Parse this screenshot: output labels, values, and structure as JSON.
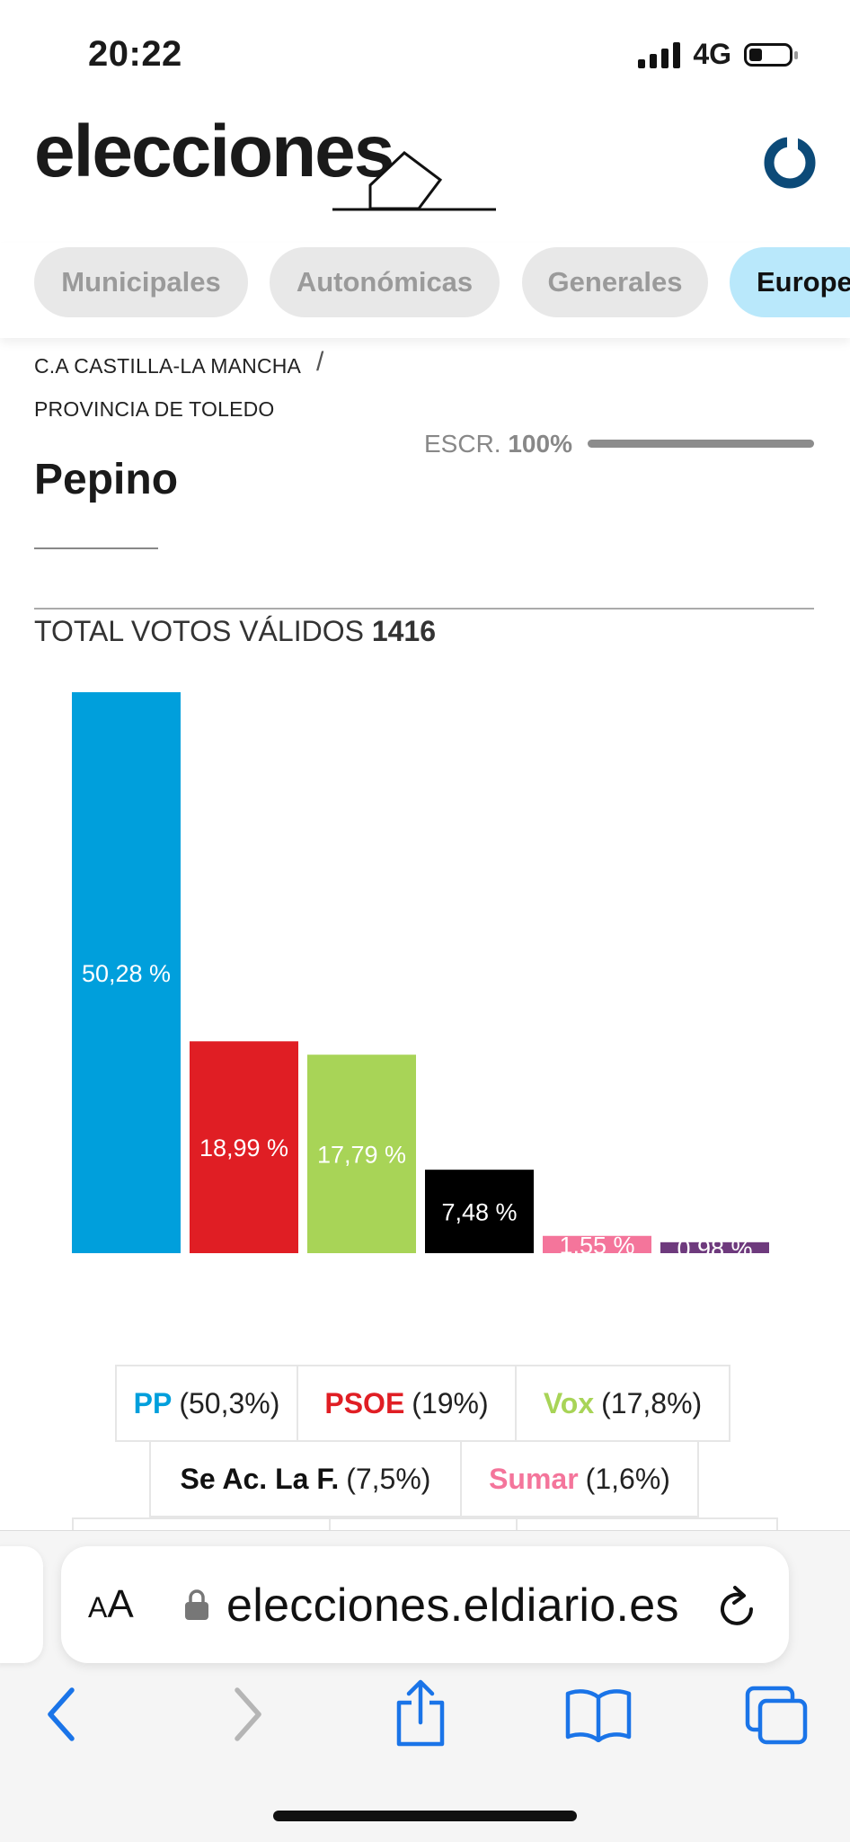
{
  "status_bar": {
    "time": "20:22",
    "network": "4G"
  },
  "header": {
    "brand": "elecciones"
  },
  "tabs": [
    {
      "label": "Municipales",
      "active": false
    },
    {
      "label": "Autonómicas",
      "active": false
    },
    {
      "label": "Generales",
      "active": false
    },
    {
      "label": "Europe",
      "active": true
    }
  ],
  "breadcrumb": {
    "region": "C.A CASTILLA-LA MANCHA",
    "separator": "/",
    "province": "PROVINCIA DE TOLEDO"
  },
  "scrutiny": {
    "label": "ESCR.",
    "value": "100%",
    "fraction": 1.0
  },
  "page_title": "Pepino",
  "total": {
    "label": "TOTAL VOTOS VÁLIDOS",
    "value": "1416"
  },
  "chart_data": {
    "type": "bar",
    "categories": [
      "PP",
      "PSOE",
      "Vox",
      "Se Ac. La F.",
      "Sumar",
      ""
    ],
    "values": [
      50.28,
      18.99,
      17.79,
      7.48,
      1.55,
      0.98
    ],
    "labels": [
      "50,28 %",
      "18,99 %",
      "17,79 %",
      "7,48 %",
      "1,55 %",
      "0,98 %"
    ],
    "colors": [
      "#009fdc",
      "#e01e24",
      "#a8d457",
      "#000000",
      "#f4759b",
      "#6e3a7d"
    ],
    "ylim": [
      0,
      50.28
    ]
  },
  "legend": [
    [
      {
        "party": "PP",
        "pct": "(50,3%)",
        "color": "#009fdc"
      },
      {
        "party": "PSOE",
        "pct": "(19%)",
        "color": "#e01e24"
      },
      {
        "party": "Vox",
        "pct": "(17,8%)",
        "color": "#a8d457"
      }
    ],
    [
      {
        "party": "Se Ac. La F.",
        "pct": "(7,5%)",
        "color": "#111111"
      },
      {
        "party": "Sumar",
        "pct": "(1,6%)",
        "color": "#f4759b"
      }
    ]
  ],
  "browser": {
    "font_size_small": "A",
    "font_size_large": "A",
    "url": "elecciones.eldiario.es"
  },
  "icons": {
    "status": [
      "signal-icon",
      "battery-icon"
    ],
    "header": [
      "ballot-box-icon",
      "eldiario-logo-icon"
    ],
    "browser": [
      "lock-icon",
      "reload-icon",
      "back-icon",
      "forward-icon",
      "share-icon",
      "bookmarks-icon",
      "tabs-icon"
    ]
  }
}
